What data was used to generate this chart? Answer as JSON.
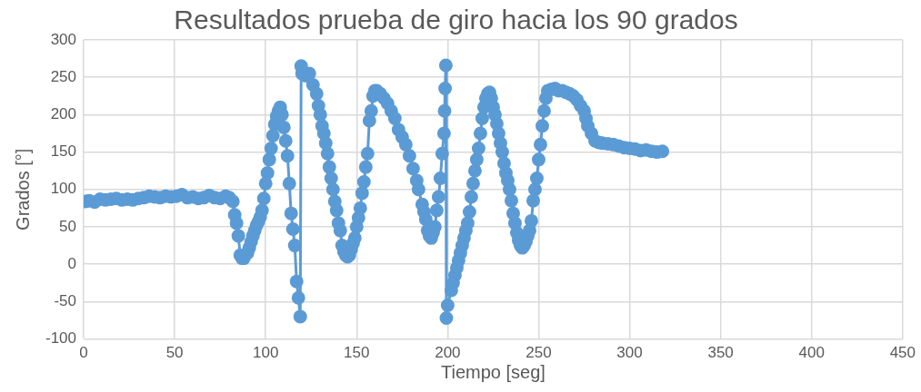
{
  "chart_data": {
    "type": "line",
    "title": "Resultados prueba de giro hacia los 90 grados",
    "xlabel": "Tiempo [seg]",
    "ylabel": "Grados [°]",
    "xlim": [
      0,
      450
    ],
    "xticks": [
      0,
      50,
      100,
      150,
      200,
      250,
      300,
      350,
      400,
      450
    ],
    "ylim": [
      -100,
      300
    ],
    "yticks": [
      -100,
      -50,
      0,
      50,
      100,
      150,
      200,
      250,
      300
    ],
    "grid": true,
    "legend": false,
    "marker": "circle",
    "line_style": "solid",
    "series": [
      {
        "color": "#5b9bd5",
        "x": [
          1,
          3,
          6,
          9,
          12,
          15,
          18,
          21,
          24,
          27,
          30,
          33,
          36,
          39,
          42,
          45,
          48,
          51,
          54,
          57,
          60,
          63,
          66,
          69,
          72,
          75,
          78,
          80,
          82,
          83,
          84,
          85,
          86,
          87,
          88,
          90,
          91,
          92,
          93,
          94,
          95,
          96,
          97,
          98,
          99,
          100,
          101,
          102,
          103,
          104,
          105,
          106,
          107,
          108,
          109,
          110,
          111,
          112,
          113,
          114,
          115,
          116,
          117,
          118,
          119,
          119.5,
          120,
          122,
          124,
          126,
          128,
          129,
          130,
          131,
          132,
          133,
          134,
          135,
          136,
          137,
          138,
          139,
          140,
          141,
          142,
          143,
          144,
          145,
          146,
          147,
          148,
          149,
          150,
          151,
          152,
          153,
          154,
          155,
          156,
          157,
          158,
          159,
          160,
          161,
          163,
          165,
          167,
          169,
          171,
          173,
          175,
          177,
          179,
          181,
          183,
          184,
          186,
          187,
          188,
          189,
          190,
          191,
          192,
          193,
          194,
          195,
          196,
          197,
          198,
          198.3,
          198.6,
          199,
          199.3,
          200,
          202,
          203,
          204,
          205,
          206,
          207,
          208,
          209,
          210,
          211,
          212,
          213,
          214,
          215,
          216,
          217,
          218,
          219,
          220,
          221,
          222,
          223,
          224,
          225,
          226,
          227,
          228,
          229,
          230,
          231,
          232,
          233,
          234,
          235,
          236,
          237,
          238,
          239,
          240,
          241,
          242,
          243,
          244,
          245,
          246,
          247,
          248,
          249,
          250,
          251,
          252,
          253,
          254,
          255,
          257,
          259,
          261,
          263,
          265,
          267,
          269,
          271,
          273,
          275,
          276,
          277,
          279,
          281,
          283,
          285,
          288,
          291,
          294,
          297,
          300,
          303,
          306,
          309,
          312,
          315,
          318
        ],
        "values": [
          84,
          85,
          83,
          87,
          86,
          87,
          88,
          86,
          87,
          86,
          88,
          89,
          91,
          90,
          89,
          91,
          90,
          91,
          93,
          89,
          90,
          88,
          89,
          92,
          89,
          88,
          91,
          89,
          84,
          66,
          55,
          38,
          12,
          8,
          8,
          15,
          22,
          30,
          38,
          45,
          52,
          57,
          63,
          72,
          88,
          108,
          122,
          140,
          155,
          172,
          187,
          198,
          205,
          210,
          200,
          183,
          165,
          145,
          108,
          68,
          47,
          25,
          -23,
          -45,
          -70,
          265,
          255,
          252,
          255,
          240,
          228,
          212,
          200,
          185,
          175,
          162,
          148,
          130,
          115,
          100,
          84,
          72,
          55,
          45,
          25,
          17,
          12,
          10,
          12,
          20,
          28,
          35,
          50,
          62,
          75,
          95,
          110,
          130,
          148,
          192,
          205,
          225,
          232,
          232,
          228,
          222,
          215,
          205,
          195,
          180,
          170,
          160,
          145,
          128,
          112,
          100,
          80,
          70,
          60,
          45,
          38,
          35,
          42,
          50,
          72,
          90,
          115,
          148,
          175,
          205,
          235,
          266,
          -72,
          -55,
          -35,
          -25,
          -15,
          -5,
          5,
          15,
          25,
          35,
          45,
          55,
          70,
          90,
          108,
          125,
          140,
          155,
          175,
          195,
          210,
          222,
          228,
          230,
          222,
          210,
          200,
          188,
          175,
          162,
          150,
          135,
          122,
          112,
          100,
          85,
          68,
          55,
          42,
          32,
          25,
          22,
          25,
          30,
          38,
          45,
          58,
          85,
          100,
          115,
          140,
          160,
          185,
          205,
          222,
          232,
          234,
          235,
          232,
          232,
          230,
          228,
          225,
          220,
          212,
          205,
          195,
          185,
          175,
          165,
          163,
          162,
          161,
          160,
          158,
          156,
          155,
          154,
          152,
          153,
          151,
          150,
          151
        ]
      }
    ]
  }
}
